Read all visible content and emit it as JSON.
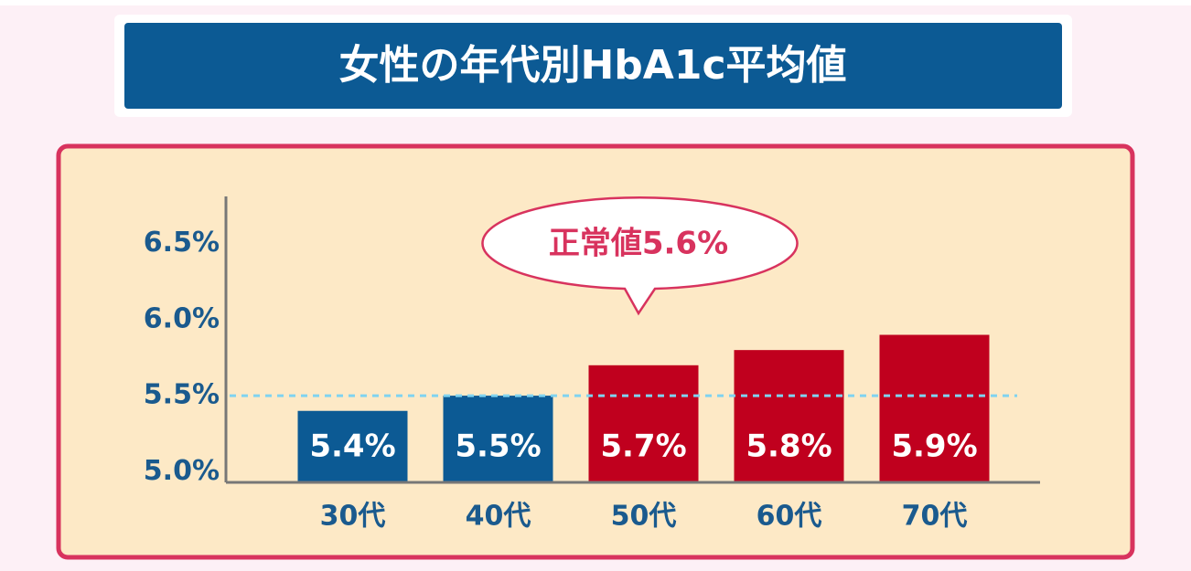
{
  "chart_data": {
    "type": "bar",
    "title": "女性の年代別HbA1c平均値",
    "categories": [
      "30代",
      "40代",
      "50代",
      "60代",
      "70代"
    ],
    "values": [
      5.4,
      5.5,
      5.7,
      5.8,
      5.9
    ],
    "value_labels": [
      "5.4%",
      "5.5%",
      "5.7%",
      "5.8%",
      "5.9%"
    ],
    "colors": [
      "#0c5a94",
      "#0c5a94",
      "#c0001e",
      "#c0001e",
      "#c0001e"
    ],
    "ylim": [
      4.93,
      6.81
    ],
    "yticks": [
      {
        "value": 5,
        "label": "5.0%"
      },
      {
        "value": 5.5,
        "label": "5.5%"
      },
      {
        "value": 6,
        "label": "6.0%"
      },
      {
        "value": 6.5,
        "label": "6.5%"
      }
    ],
    "reference_line": 5.5,
    "annotation": "正常値5.6%"
  }
}
